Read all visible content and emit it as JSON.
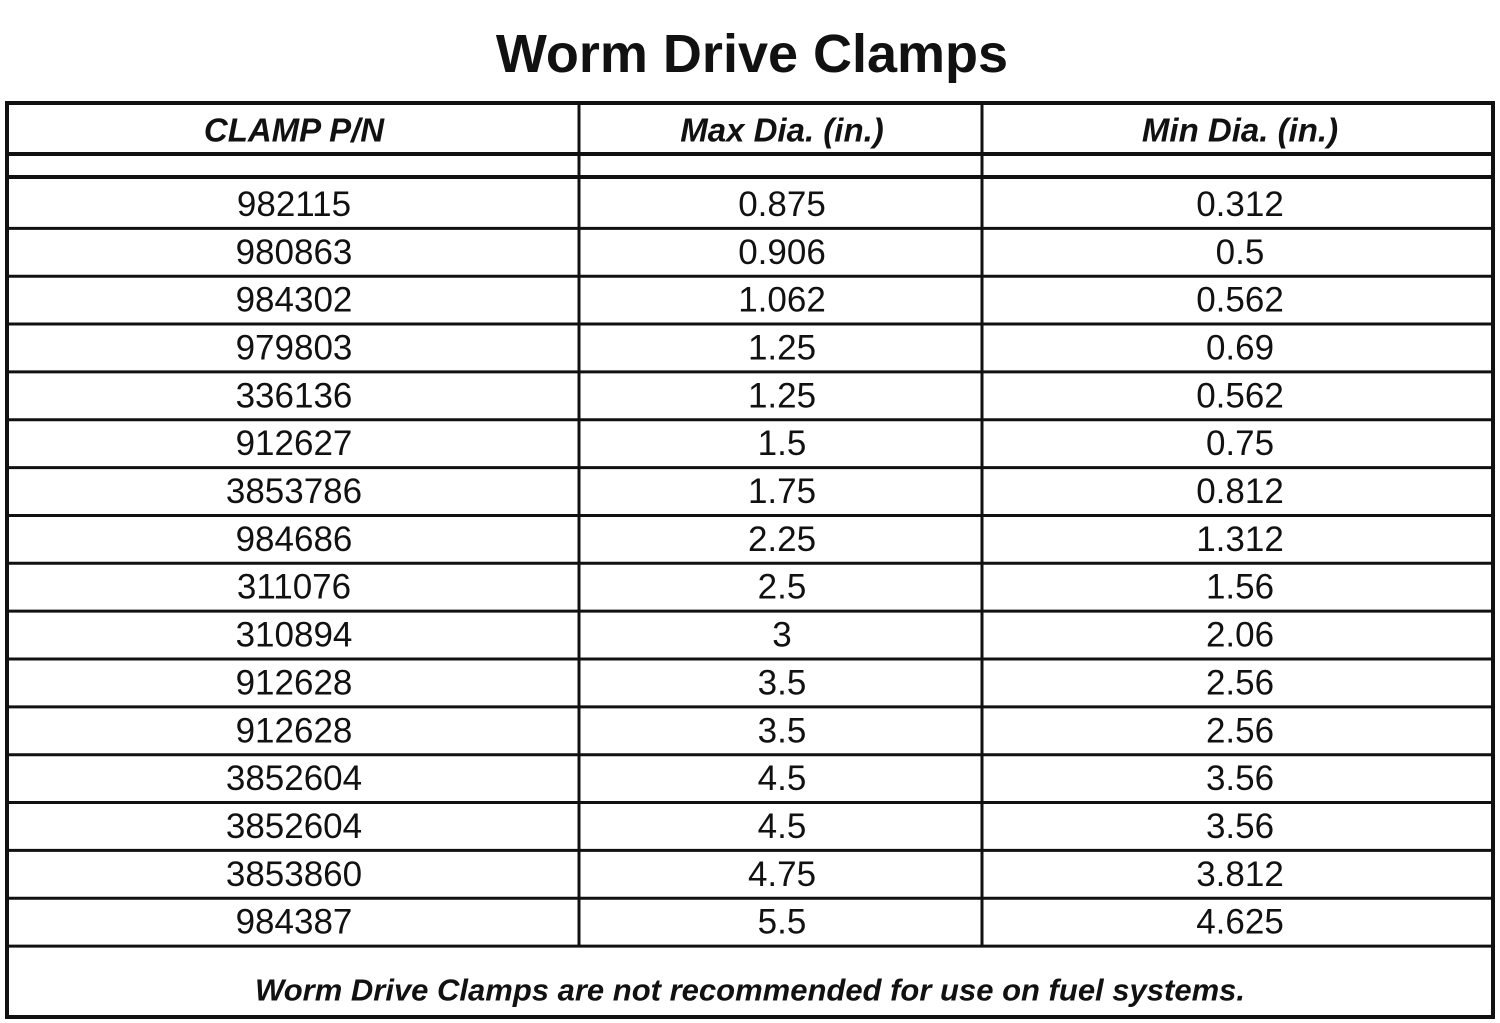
{
  "title": "Worm Drive Clamps",
  "table": {
    "header": [
      "CLAMP P/N",
      "Max Dia. (in.)",
      "Min Dia. (in.)"
    ],
    "rows": [
      [
        "982115",
        "0.875",
        "0.312"
      ],
      [
        "980863",
        "0.906",
        "0.5"
      ],
      [
        "984302",
        "1.062",
        "0.562"
      ],
      [
        "979803",
        "1.25",
        "0.69"
      ],
      [
        "336136",
        "1.25",
        "0.562"
      ],
      [
        "912627",
        "1.5",
        "0.75"
      ],
      [
        "3853786",
        "1.75",
        "0.812"
      ],
      [
        "984686",
        "2.25",
        "1.312"
      ],
      [
        "311076",
        "2.5",
        "1.56"
      ],
      [
        "310894",
        "3",
        "2.06"
      ],
      [
        "912628",
        "3.5",
        "2.56"
      ],
      [
        "912628",
        "3.5",
        "2.56"
      ],
      [
        "3852604",
        "4.5",
        "3.56"
      ],
      [
        "3852604",
        "4.5",
        "3.56"
      ],
      [
        "3853860",
        "4.75",
        "3.812"
      ],
      [
        "984387",
        "5.5",
        "4.625"
      ]
    ],
    "footnote": "Worm Drive Clamps are not recommended for use on fuel systems."
  }
}
